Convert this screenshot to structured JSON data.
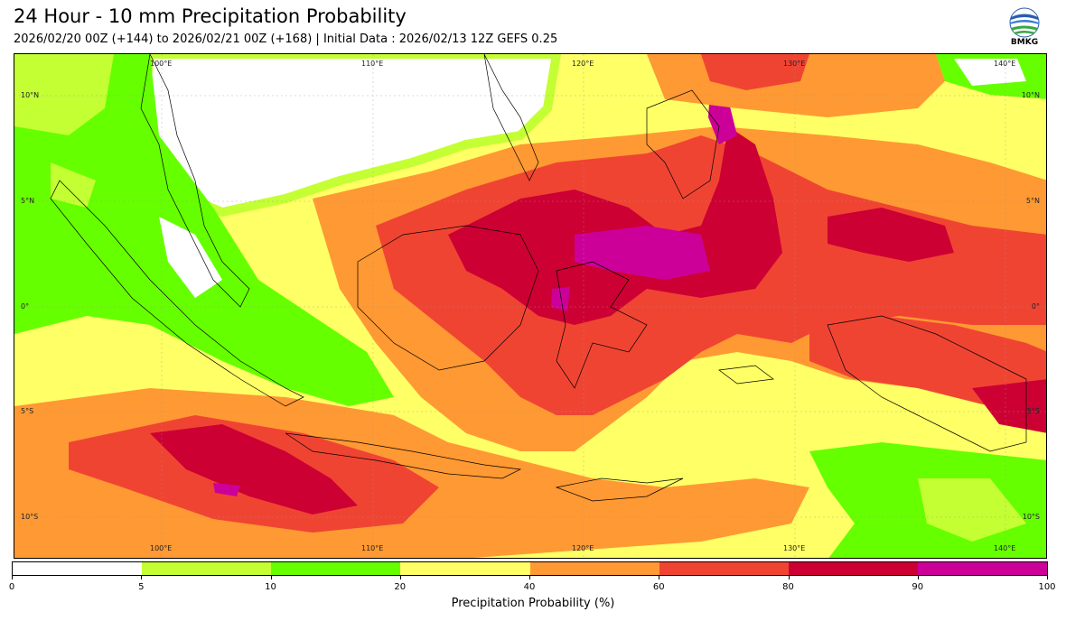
{
  "header": {
    "title": "24 Hour - 10 mm Precipitation Probability",
    "subtitle": "2026/02/20 00Z (+144) to 2026/02/21 00Z (+168) | Initial Data : 2026/02/13 12Z GEFS 0.25",
    "logo_text": "BMKG"
  },
  "map": {
    "lon_labels": [
      "100°E",
      "110°E",
      "120°E",
      "130°E",
      "140°E"
    ],
    "lat_labels_left": [
      "10°N",
      "5°N",
      "0°",
      "5°S",
      "10°S"
    ],
    "lat_labels_right": [
      "10°N",
      "5°N",
      "0°",
      "5°S",
      "10°S"
    ]
  },
  "colorbar": {
    "label": "Precipitation Probability (%)",
    "ticks": [
      "0",
      "5",
      "10",
      "20",
      "40",
      "60",
      "80",
      "90",
      "100"
    ],
    "colors": [
      "#ffffff",
      "#c3ff33",
      "#66ff00",
      "#ffff66",
      "#ff9933",
      "#f04433",
      "#cc0033",
      "#cc0099"
    ]
  }
}
